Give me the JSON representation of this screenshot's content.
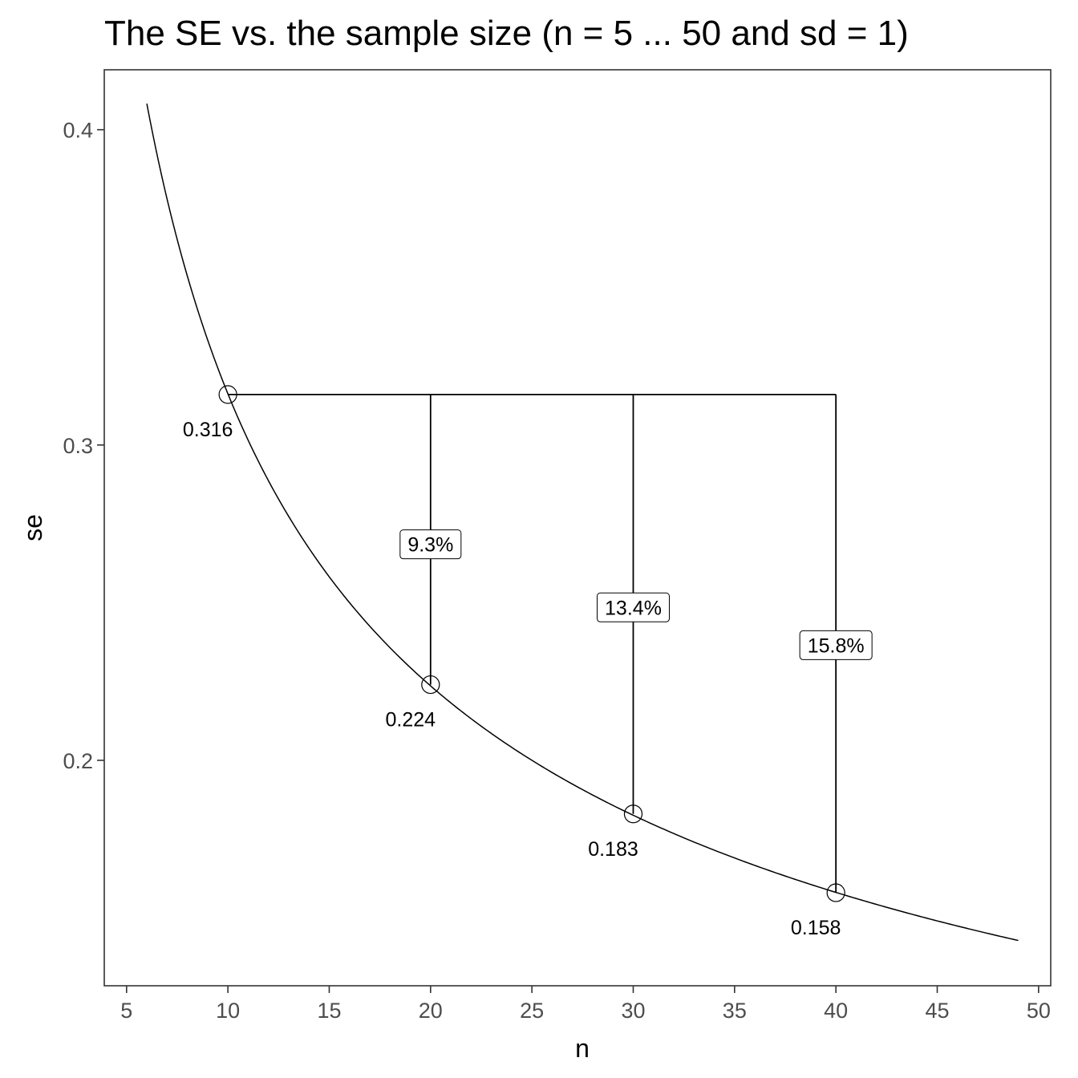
{
  "chart_data": {
    "type": "line",
    "title": "The SE vs. the sample size (n = 5 ... 50 and sd = 1)",
    "xlabel": "n",
    "ylabel": "se",
    "xlim": [
      3.9,
      50.6
    ],
    "ylim": [
      0.1285,
      0.419
    ],
    "x_ticks": [
      5,
      10,
      15,
      20,
      25,
      30,
      35,
      40,
      45,
      50
    ],
    "x_tick_labels": [
      "5",
      "10",
      "15",
      "20",
      "25",
      "30",
      "35",
      "40",
      "45",
      "50"
    ],
    "y_ticks": [
      0.2,
      0.3,
      0.4
    ],
    "y_tick_labels": [
      "0.2",
      "0.3",
      "0.4"
    ],
    "grid": false,
    "curve": {
      "sd": 1,
      "x_start": 6,
      "x_end": 49
    },
    "points": [
      {
        "x": 10,
        "y": 0.316,
        "label": "0.316"
      },
      {
        "x": 20,
        "y": 0.224,
        "label": "0.224"
      },
      {
        "x": 30,
        "y": 0.183,
        "label": "0.183"
      },
      {
        "x": 40,
        "y": 0.158,
        "label": "0.158"
      }
    ],
    "reference_line": {
      "y": 0.316,
      "x_from": 10,
      "x_to": 40
    },
    "drops": [
      {
        "x": 20,
        "y_top": 0.316,
        "y_bottom": 0.224,
        "label_y": 0.2685,
        "label": "9.3%"
      },
      {
        "x": 30,
        "y_top": 0.316,
        "y_bottom": 0.183,
        "label_y": 0.2485,
        "label": "13.4%"
      },
      {
        "x": 40,
        "y_top": 0.316,
        "y_bottom": 0.158,
        "label_y": 0.2365,
        "label": "15.8%"
      }
    ]
  }
}
